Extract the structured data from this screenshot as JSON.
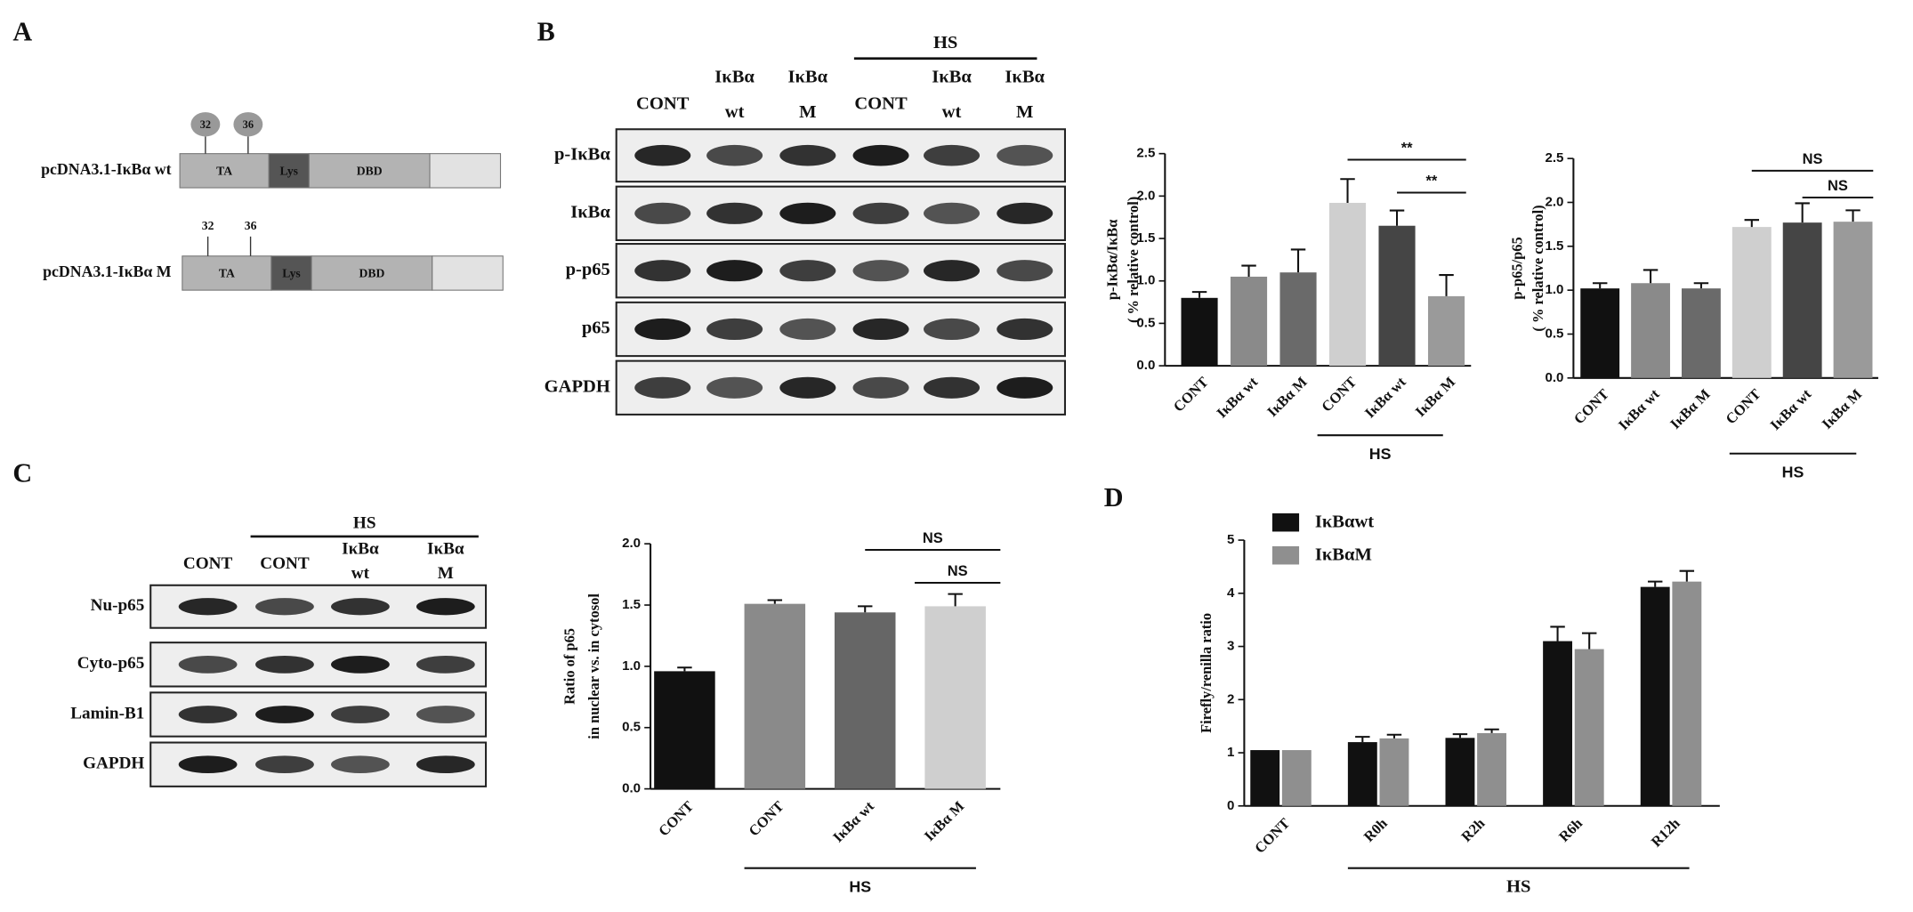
{
  "panel_labels": [
    "A",
    "B",
    "C",
    "D"
  ],
  "diagram": {
    "constructs": [
      {
        "name": "pcDNA3.1-IκBα wt",
        "sites": [
          "32",
          "36"
        ],
        "domains": [
          "TA",
          "Lys",
          "DBD"
        ]
      },
      {
        "name": "pcDNA3.1-IκBα M",
        "sites": [
          "32",
          "36"
        ],
        "domains": [
          "TA",
          "Lys",
          "DBD"
        ]
      }
    ]
  },
  "blots": [
    {
      "group": "HS",
      "lanes": [
        [
          "CONT"
        ],
        [
          "IκBα",
          "wt"
        ],
        [
          "IκBα",
          "M"
        ],
        [
          "CONT"
        ],
        [
          "IκBα",
          "wt"
        ],
        [
          "IκBα",
          "M"
        ]
      ],
      "rows": [
        "p-IκBα",
        "IκBα",
        "p-p65",
        "p65",
        "GAPDH"
      ]
    },
    {
      "group": "HS",
      "lanes": [
        [
          "CONT"
        ],
        [
          "CONT"
        ],
        [
          "IκBα",
          "wt"
        ],
        [
          "IκBα",
          "M"
        ]
      ],
      "rows": [
        "Nu-p65",
        "Cyto-p65",
        "Lamin-B1",
        "GAPDH"
      ]
    }
  ],
  "chart_data": [
    {
      "type": "bar",
      "y_label": [
        "p-IκBα/IκBα",
        "( % relative control)"
      ],
      "categories": [
        "CONT",
        "IκBα wt",
        "IκBα M",
        "CONT",
        "IκBα wt",
        "IκBα M"
      ],
      "values": [
        0.8,
        1.05,
        1.1,
        1.92,
        1.65,
        0.82
      ],
      "errors": [
        0.07,
        0.13,
        0.27,
        0.28,
        0.18,
        0.25
      ],
      "colors": [
        "#111111",
        "#8a8a8a",
        "#6a6a6a",
        "#cfcfcf",
        "#454545",
        "#9a9a9a"
      ],
      "ylim": [
        0,
        2.5
      ],
      "yticks": [
        {
          "value": 0,
          "label": "0.0"
        },
        0.5,
        {
          "value": 1,
          "label": "1.0"
        },
        1.5,
        {
          "value": 2,
          "label": "2.0"
        },
        2.5
      ],
      "group_label": "HS",
      "annotations": [
        "**",
        "**"
      ]
    },
    {
      "type": "bar",
      "y_label": [
        "p-p65/p65",
        "( % relative control)"
      ],
      "categories": [
        "CONT",
        "IκBα wt",
        "IκBα M",
        "CONT",
        "IκBα wt",
        "IκBα M"
      ],
      "values": [
        1.02,
        1.08,
        1.02,
        1.72,
        1.77,
        1.78
      ],
      "errors": [
        0.06,
        0.15,
        0.06,
        0.08,
        0.22,
        0.13
      ],
      "colors": [
        "#111111",
        "#8a8a8a",
        "#6a6a6a",
        "#cfcfcf",
        "#454545",
        "#9a9a9a"
      ],
      "ylim": [
        0,
        2.5
      ],
      "yticks": [
        {
          "value": 0,
          "label": "0.0"
        },
        0.5,
        {
          "value": 1,
          "label": "1.0"
        },
        1.5,
        {
          "value": 2,
          "label": "2.0"
        },
        2.5
      ],
      "group_label": "HS",
      "annotations": [
        "NS",
        "NS"
      ]
    },
    {
      "type": "bar",
      "y_label": [
        "Ratio of p65",
        "in nuclear vs. in cytosol"
      ],
      "categories": [
        "CONT",
        "CONT",
        "IκBα wt",
        "IκBα M"
      ],
      "values": [
        0.96,
        1.51,
        1.44,
        1.49
      ],
      "errors": [
        0.03,
        0.03,
        0.05,
        0.1
      ],
      "colors": [
        "#111111",
        "#8a8a8a",
        "#666666",
        "#cfcfcf"
      ],
      "ylim": [
        0,
        2
      ],
      "yticks": [
        {
          "value": 0,
          "label": "0.0"
        },
        0.5,
        {
          "value": 1,
          "label": "1.0"
        },
        1.5,
        {
          "value": 2,
          "label": "2.0"
        }
      ],
      "group_label": "HS",
      "annotations": [
        "NS",
        "NS"
      ]
    },
    {
      "type": "grouped_bar",
      "y_label": [
        "Firefly/renilla  ratio"
      ],
      "categories": [
        "CONT",
        "R0h",
        "R2h",
        "R6h",
        "R12h"
      ],
      "series": [
        {
          "name": "IκBαwt",
          "color": "#111111",
          "values": [
            1.05,
            1.2,
            1.28,
            3.1,
            4.12
          ],
          "errors": [
            0,
            0.1,
            0.07,
            0.27,
            0.1
          ]
        },
        {
          "name": "IκBαM",
          "color": "#8f8f8f",
          "values": [
            1.05,
            1.27,
            1.37,
            2.95,
            4.22
          ],
          "errors": [
            0,
            0.07,
            0.07,
            0.3,
            0.2
          ]
        }
      ],
      "ylim": [
        0,
        5
      ],
      "yticks": [
        0,
        1,
        2,
        3,
        4,
        5
      ],
      "group_label": "HS"
    }
  ]
}
